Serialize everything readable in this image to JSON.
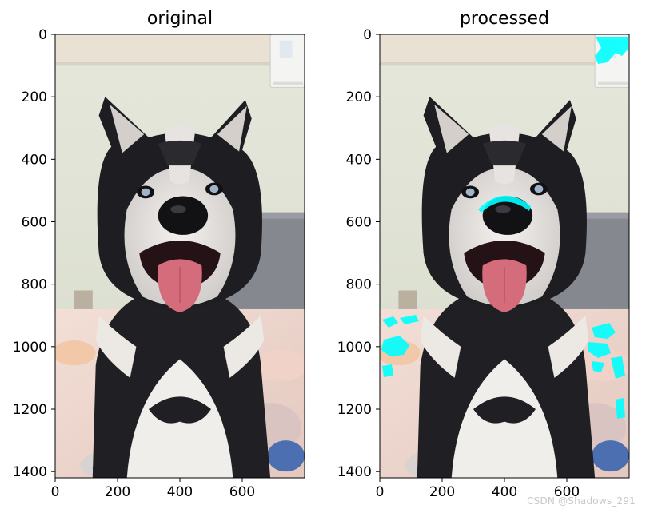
{
  "chart_data": [
    {
      "type": "image",
      "title": "original",
      "xlim": [
        0,
        800
      ],
      "ylim": [
        1420,
        0
      ],
      "xticks": [
        "0",
        "200",
        "400",
        "600"
      ],
      "yticks": [
        "0",
        "200",
        "400",
        "600",
        "800",
        "1000",
        "1200",
        "1400"
      ],
      "xtick_values": [
        0,
        200,
        400,
        600
      ],
      "ytick_values": [
        0,
        200,
        400,
        600,
        800,
        1000,
        1200,
        1400
      ],
      "image_width": 800,
      "image_height": 1420
    },
    {
      "type": "image",
      "title": "processed",
      "xlim": [
        0,
        800
      ],
      "ylim": [
        1420,
        0
      ],
      "xticks": [
        "0",
        "200",
        "400",
        "600"
      ],
      "yticks": [
        "0",
        "200",
        "400",
        "600",
        "800",
        "1000",
        "1200",
        "1400"
      ],
      "xtick_values": [
        0,
        200,
        400,
        600
      ],
      "ytick_values": [
        0,
        200,
        400,
        600,
        800,
        1000,
        1200,
        1400
      ],
      "image_width": 800,
      "image_height": 1420
    }
  ],
  "colors": {
    "wall": "#dfe4d4",
    "ceiling": "#e9e2d6",
    "fur_dark": "#1c1c20",
    "fur_light": "#e9e5e1",
    "tongue": "#cf6a78",
    "bedding": "#ead6cf",
    "highlight": "#00ffff"
  },
  "watermark": "CSDN @Shadows_291"
}
